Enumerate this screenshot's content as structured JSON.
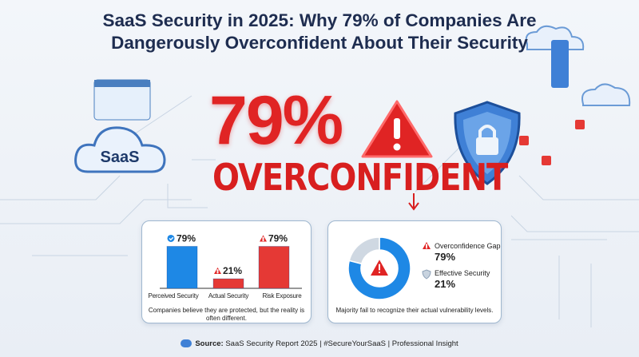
{
  "title": {
    "line1": "SaaS Security in 2025: Why 79% of Companies Are",
    "line2": "Dangerously Overconfident About Their Security"
  },
  "hero": {
    "stat": "79%",
    "label": "OVERCONFIDENT",
    "icon": "warning-icon"
  },
  "illustration": {
    "cloud_label": "SaaS"
  },
  "colors": {
    "red": "#e02424",
    "blue": "#1e88e5",
    "navy": "#1e2d50",
    "gray": "#cfd8e2"
  },
  "chart_data": [
    {
      "type": "bar",
      "categories": [
        "Perceived Security",
        "Actual Security",
        "Risk Exposure"
      ],
      "values": [
        79,
        21,
        79
      ],
      "value_labels": [
        "79%",
        "21%",
        "79%"
      ],
      "colors": [
        "#1e88e5",
        "#e53935",
        "#e53935"
      ],
      "icons": [
        "check-circle-icon",
        "warning-icon",
        "warning-icon"
      ],
      "ylim": [
        0,
        100
      ],
      "caption": "Companies believe they are protected, but the reality is often different."
    },
    {
      "type": "pie",
      "donut": true,
      "slices": [
        {
          "name": "Overconfidence Gap",
          "value": 79,
          "label": "79%",
          "color": "#1e88e5",
          "icon": "warning-icon"
        },
        {
          "name": "Effective Security",
          "value": 21,
          "label": "21%",
          "color": "#cfd8e2",
          "icon": "shield-icon"
        }
      ],
      "caption": "Majority fail to recognize their actual vulnerability levels."
    }
  ],
  "footer": {
    "source_label": "Source:",
    "text": "SaaS Security Report 2025 | #SecureYourSaaS | Professional Insight"
  }
}
